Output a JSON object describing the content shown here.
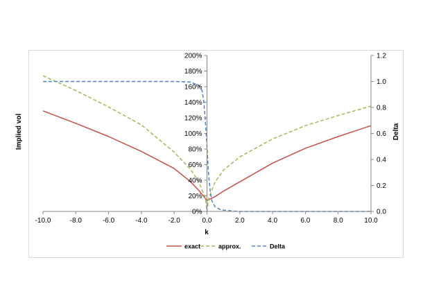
{
  "chart_data": {
    "type": "line",
    "xlabel": "k",
    "ylabel_left": "Implied vol",
    "ylabel_right": "Delta",
    "xlim": [
      -10,
      10
    ],
    "ylim_left": [
      0,
      2.0
    ],
    "ylim_right": [
      0,
      1.2
    ],
    "x_ticks": [
      "-10.0",
      "-8.0",
      "-6.0",
      "-4.0",
      "-2.0",
      "0.0",
      "2.0",
      "4.0",
      "6.0",
      "8.0",
      "10.0"
    ],
    "y_left_ticks": [
      "0%",
      "20%",
      "40%",
      "60%",
      "80%",
      "100%",
      "120%",
      "140%",
      "160%",
      "180%",
      "200%"
    ],
    "y_right_ticks": [
      "0.0",
      "0.2",
      "0.4",
      "0.6",
      "0.8",
      "1.0",
      "1.2"
    ],
    "grid": false,
    "legend_position": "bottom",
    "series": [
      {
        "name": "exact",
        "axis": "left",
        "color": "#c0504d",
        "dash": "solid",
        "x": [
          -10,
          -8,
          -6,
          -4,
          -2,
          -1,
          -0.5,
          0,
          0.5,
          1,
          2,
          4,
          6,
          8,
          10
        ],
        "y": [
          1.29,
          1.13,
          0.96,
          0.77,
          0.55,
          0.38,
          0.27,
          0.14,
          0.19,
          0.26,
          0.38,
          0.62,
          0.81,
          0.96,
          1.1
        ]
      },
      {
        "name": "approx.",
        "axis": "left",
        "color": "#9bbb59",
        "dash": "dashed",
        "x": [
          -10,
          -8,
          -6,
          -4,
          -2,
          -1,
          -0.5,
          -0.1,
          0,
          0.1,
          0.5,
          1,
          2,
          4,
          6,
          8,
          10
        ],
        "y": [
          1.74,
          1.55,
          1.34,
          1.11,
          0.76,
          0.54,
          0.38,
          0.17,
          0.0,
          0.17,
          0.38,
          0.53,
          0.7,
          0.93,
          1.1,
          1.23,
          1.35
        ]
      },
      {
        "name": "Delta",
        "axis": "right",
        "color": "#4f81bd",
        "dash": "dashed",
        "x": [
          -10,
          -2,
          -1,
          -0.5,
          -0.3,
          -0.2,
          -0.1,
          0,
          0.1,
          0.2,
          0.3,
          0.5,
          0.8,
          1,
          1.5,
          2,
          10
        ],
        "y": [
          1.0,
          1.0,
          0.995,
          0.97,
          0.93,
          0.85,
          0.7,
          0.5,
          0.28,
          0.15,
          0.08,
          0.035,
          0.015,
          0.01,
          0.004,
          0.0,
          0.0
        ]
      }
    ]
  }
}
